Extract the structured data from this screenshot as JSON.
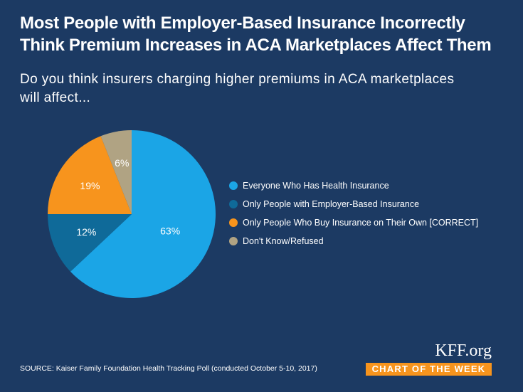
{
  "title_line1": "Most People with Employer-Based Insurance Incorrectly",
  "title_line2": "Think Premium Increases in ACA Marketplaces Affect Them",
  "subtitle_line1": "Do you think insurers charging higher premiums in ACA marketplaces",
  "subtitle_line2": "will affect...",
  "source": "SOURCE: Kaiser Family Foundation Health Tracking Poll (conducted October 5-10, 2017)",
  "brand": "KFF.org",
  "badge": "CHART OF THE WEEK",
  "chart_data": {
    "type": "pie",
    "title": "",
    "slices": [
      {
        "label": "Everyone Who Has Health Insurance",
        "value": 63,
        "display": "63%",
        "color": "#1ba5e6"
      },
      {
        "label": "Only People with Employer-Based Insurance",
        "value": 12,
        "display": "12%",
        "color": "#0f6a99"
      },
      {
        "label": "Only People Who Buy Insurance on Their Own [CORRECT]",
        "value": 19,
        "display": "19%",
        "color": "#f7941d"
      },
      {
        "label": "Don't Know/Refused",
        "value": 6,
        "display": "6%",
        "color": "#b0a383"
      }
    ],
    "legend_position": "right"
  }
}
